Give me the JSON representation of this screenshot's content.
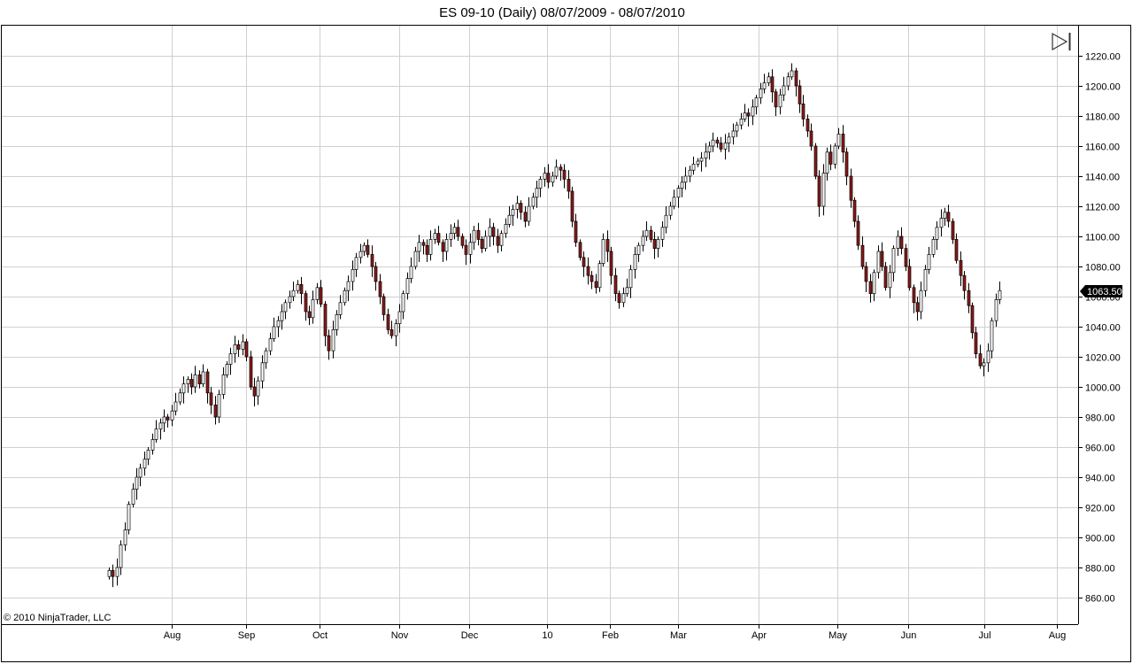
{
  "window": {
    "title": "ES 09-10 (Daily)  08/07/2009 - 08/07/2010",
    "copyright": "© 2010 NinjaTrader, LLC",
    "scroll_end_icon": "skip-to-end-icon"
  },
  "chart_data": {
    "type": "candlestick",
    "title": "ES 09-10 (Daily)  08/07/2009 - 08/07/2010",
    "xlabel": "",
    "ylabel": "",
    "ylim": [
      850,
      1230
    ],
    "grid": true,
    "y_ticks": [
      "860.00",
      "880.00",
      "900.00",
      "920.00",
      "940.00",
      "960.00",
      "980.00",
      "1000.00",
      "1020.00",
      "1040.00",
      "1060.00",
      "1080.00",
      "1100.00",
      "1120.00",
      "1140.00",
      "1160.00",
      "1180.00",
      "1200.00",
      "1220.00"
    ],
    "x_ticks": [
      "Aug",
      "Sep",
      "Oct",
      "Nov",
      "Dec",
      "10",
      "Feb",
      "Mar",
      "Apr",
      "May",
      "Jun",
      "Jul",
      "Aug"
    ],
    "last_price": "1063.50",
    "colors": {
      "up": "#ffffff",
      "down": "#8b1a1a",
      "outline": "#000000",
      "grid": "#d0d0d0",
      "price_marker": "#000000"
    },
    "closes": [
      878,
      874,
      880,
      895,
      905,
      922,
      932,
      940,
      946,
      952,
      958,
      965,
      972,
      976,
      980,
      978,
      984,
      990,
      996,
      1002,
      1005,
      1000,
      1008,
      1002,
      1010,
      996,
      988,
      980,
      995,
      1008,
      1015,
      1022,
      1028,
      1025,
      1030,
      1020,
      1000,
      994,
      1004,
      1016,
      1024,
      1032,
      1040,
      1044,
      1050,
      1056,
      1060,
      1064,
      1068,
      1062,
      1050,
      1046,
      1058,
      1066,
      1055,
      1034,
      1024,
      1038,
      1048,
      1056,
      1064,
      1070,
      1078,
      1086,
      1090,
      1094,
      1088,
      1080,
      1070,
      1060,
      1048,
      1038,
      1034,
      1042,
      1050,
      1062,
      1072,
      1080,
      1090,
      1096,
      1094,
      1088,
      1098,
      1102,
      1096,
      1090,
      1098,
      1102,
      1106,
      1100,
      1094,
      1088,
      1096,
      1104,
      1098,
      1092,
      1100,
      1106,
      1100,
      1094,
      1102,
      1108,
      1114,
      1118,
      1122,
      1116,
      1110,
      1120,
      1126,
      1132,
      1138,
      1142,
      1136,
      1140,
      1146,
      1144,
      1138,
      1130,
      1110,
      1096,
      1086,
      1080,
      1074,
      1070,
      1066,
      1082,
      1098,
      1090,
      1074,
      1062,
      1056,
      1062,
      1066,
      1078,
      1088,
      1094,
      1100,
      1104,
      1098,
      1092,
      1098,
      1106,
      1114,
      1120,
      1126,
      1132,
      1136,
      1140,
      1144,
      1148,
      1150,
      1152,
      1156,
      1160,
      1164,
      1162,
      1158,
      1162,
      1166,
      1170,
      1174,
      1178,
      1182,
      1180,
      1186,
      1192,
      1198,
      1202,
      1206,
      1196,
      1186,
      1194,
      1200,
      1206,
      1210,
      1200,
      1188,
      1178,
      1170,
      1160,
      1140,
      1120,
      1142,
      1156,
      1148,
      1160,
      1168,
      1156,
      1140,
      1124,
      1110,
      1094,
      1080,
      1070,
      1062,
      1076,
      1090,
      1080,
      1066,
      1076,
      1092,
      1100,
      1092,
      1080,
      1066,
      1056,
      1050,
      1064,
      1078,
      1088,
      1098,
      1106,
      1112,
      1116,
      1110,
      1098,
      1084,
      1074,
      1064,
      1054,
      1036,
      1022,
      1014,
      1016,
      1024,
      1044,
      1058,
      1064
    ]
  }
}
